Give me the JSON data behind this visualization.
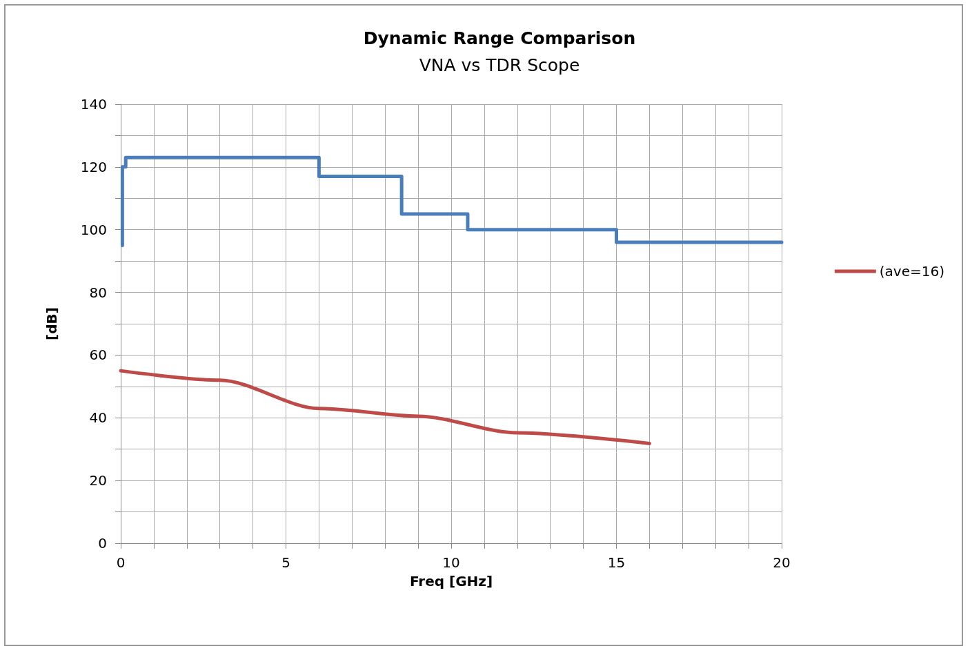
{
  "chart_data": {
    "type": "line",
    "title": "Dynamic Range Comparison",
    "subtitle": "VNA vs TDR Scope",
    "xlabel": "Freq [GHz]",
    "ylabel": "[dB]",
    "xlim": [
      0,
      20
    ],
    "ylim": [
      0,
      140
    ],
    "xticks": [
      0,
      {
        "value": 1,
        "label": null
      },
      {
        "value": 2,
        "label": null
      },
      {
        "value": 3,
        "label": null
      },
      {
        "value": 4,
        "label": null
      },
      5,
      {
        "value": 6,
        "label": null
      },
      {
        "value": 7,
        "label": null
      },
      {
        "value": 8,
        "label": null
      },
      {
        "value": 9,
        "label": null
      },
      10,
      {
        "value": 11,
        "label": null
      },
      {
        "value": 12,
        "label": null
      },
      {
        "value": 13,
        "label": null
      },
      {
        "value": 14,
        "label": null
      },
      15,
      {
        "value": 16,
        "label": null
      },
      {
        "value": 17,
        "label": null
      },
      {
        "value": 18,
        "label": null
      },
      {
        "value": 19,
        "label": null
      },
      20
    ],
    "yticks": [
      0,
      {
        "value": 10,
        "label": null
      },
      20,
      {
        "value": 30,
        "label": null
      },
      40,
      {
        "value": 50,
        "label": null
      },
      60,
      {
        "value": 70,
        "label": null
      },
      80,
      {
        "value": 90,
        "label": null
      },
      100,
      {
        "value": 110,
        "label": null
      },
      120,
      {
        "value": 130,
        "label": null
      },
      140
    ],
    "grid": true,
    "legend": "right",
    "line_style": "solid",
    "marker": "none",
    "series": [
      {
        "color": "#4a7ebb",
        "x": [
          0.05,
          0.05,
          0.15,
          0.15,
          6,
          6,
          8.5,
          8.5,
          10.5,
          10.5,
          15,
          15,
          20
        ],
        "values": [
          95,
          120,
          120,
          123,
          123,
          117,
          117,
          105,
          105,
          100,
          100,
          96,
          96
        ]
      },
      {
        "name": "(ave=16)",
        "color": "#be4b48",
        "x": [
          0,
          3,
          6,
          9,
          12,
          16
        ],
        "values": [
          55,
          52,
          43,
          40.5,
          35.2,
          31.8
        ]
      }
    ]
  }
}
